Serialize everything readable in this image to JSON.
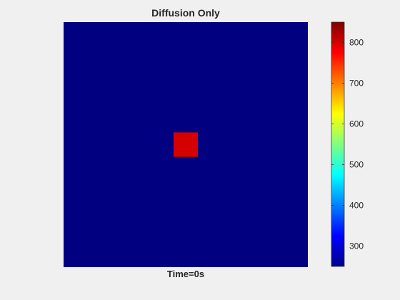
{
  "chart_data": {
    "type": "heatmap",
    "title": "Diffusion Only",
    "xlabel": "Time=0s",
    "ylabel": "",
    "grid": false,
    "background_value": 250,
    "hot_region": {
      "value": 800,
      "x_range": [
        0.45,
        0.55
      ],
      "y_range": [
        0.45,
        0.55
      ]
    },
    "colorbar": {
      "colormap": "jet",
      "clim": [
        250,
        850
      ],
      "ticks": [
        300,
        400,
        500,
        600,
        700,
        800
      ],
      "tick_labels": [
        "300",
        "400",
        "500",
        "600",
        "700",
        "800"
      ]
    }
  }
}
